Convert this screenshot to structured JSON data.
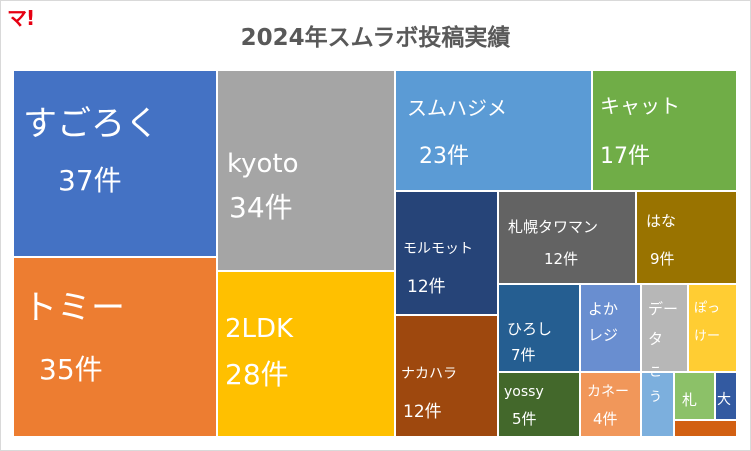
{
  "logo": "マ!",
  "chart_data": {
    "type": "treemap",
    "title": "2024年スムラボ投稿実績",
    "items": [
      {
        "name": "すごろく",
        "label": "37件",
        "value": 37,
        "color": "#4472c4"
      },
      {
        "name": "トミー",
        "label": "35件",
        "value": 35,
        "color": "#ed7d31"
      },
      {
        "name": "kyoto",
        "label": "34件",
        "value": 34,
        "color": "#a5a5a5"
      },
      {
        "name": "2LDK",
        "label": "28件",
        "value": 28,
        "color": "#ffc000"
      },
      {
        "name": "スムハジメ",
        "label": "23件",
        "value": 23,
        "color": "#5b9bd5"
      },
      {
        "name": "キャット",
        "label": "17件",
        "value": 17,
        "color": "#70ad47"
      },
      {
        "name": "モルモット",
        "label": "12件",
        "value": 12,
        "color": "#264478"
      },
      {
        "name": "札幌タワマン",
        "label": "12件",
        "value": 12,
        "color": "#636363"
      },
      {
        "name": "ナカハラ",
        "label": "12件",
        "value": 12,
        "color": "#9e480e"
      },
      {
        "name": "はな",
        "label": "9件",
        "value": 9,
        "color": "#997300"
      },
      {
        "name": "ひろし",
        "label": "7件",
        "value": 7,
        "color": "#255e91"
      },
      {
        "name": "yossy",
        "label": "5件",
        "value": 5,
        "color": "#43682b"
      },
      {
        "name": "よかレジ",
        "label": "",
        "value": 4,
        "color": "#698ed0"
      },
      {
        "name": "カネー",
        "label": "4件",
        "value": 4,
        "color": "#f1975a"
      },
      {
        "name": "データ",
        "label": "",
        "value": 3,
        "color": "#b7b7b7"
      },
      {
        "name": "ぽっけー",
        "label": "",
        "value": 3,
        "color": "#ffcd33"
      },
      {
        "name": "こう",
        "label": "",
        "value": 2,
        "color": "#7cafdd"
      },
      {
        "name": "札",
        "label": "",
        "value": 2,
        "color": "#8cc168"
      },
      {
        "name": "大",
        "label": "",
        "value": 1,
        "color": "#335aa1"
      },
      {
        "name": "",
        "label": "",
        "value": 1,
        "color": "#d26012"
      }
    ]
  }
}
